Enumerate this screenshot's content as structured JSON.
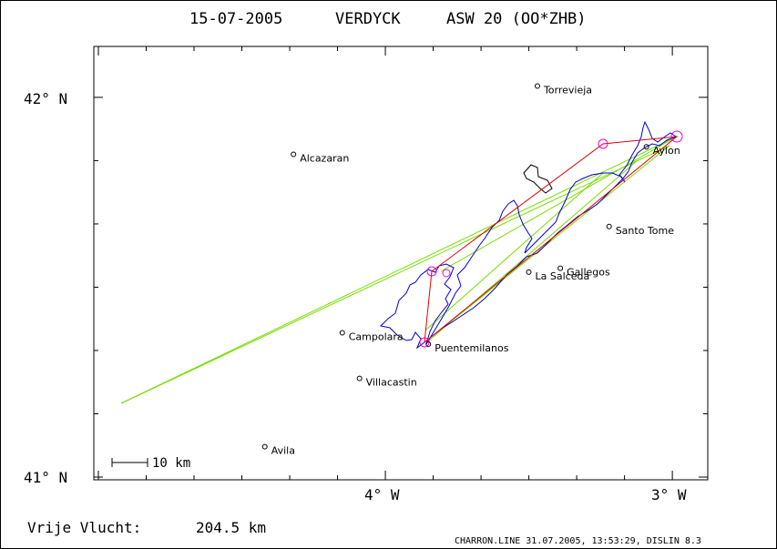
{
  "header": {
    "date": "15-07-2005",
    "pilot": "VERDYCK",
    "glider": "ASW 20 (OO*ZHB)"
  },
  "axes": {
    "y_labels": [
      {
        "text": "42° N",
        "lat": 42.0
      },
      {
        "text": "41° N",
        "lat": 41.0
      }
    ],
    "x_labels": [
      {
        "text": "4° W",
        "lon": -4.0
      },
      {
        "text": "3° W",
        "lon": -3.0
      }
    ]
  },
  "towns": [
    {
      "name": "Torrevieja",
      "lon": -3.47,
      "lat": 42.03
    },
    {
      "name": "Alcazaran",
      "lon": -4.32,
      "lat": 41.85
    },
    {
      "name": "Aylon",
      "lon": -3.09,
      "lat": 41.87
    },
    {
      "name": "Santo Tome",
      "lon": -3.22,
      "lat": 41.66
    },
    {
      "name": "Gallegos",
      "lon": -3.39,
      "lat": 41.55
    },
    {
      "name": "La Salceda",
      "lon": -3.5,
      "lat": 41.54
    },
    {
      "name": "Campolara",
      "lon": -4.15,
      "lat": 41.38
    },
    {
      "name": "Puentemilanos",
      "lon": -3.85,
      "lat": 41.35
    },
    {
      "name": "Villacastin",
      "lon": -4.09,
      "lat": 41.26
    },
    {
      "name": "Avila",
      "lon": -4.42,
      "lat": 41.08
    }
  ],
  "scale_bar": {
    "label": "10 km"
  },
  "footer": {
    "label": "Vrije Vlucht:",
    "distance": "204.5 km",
    "credit": "CHARRON.LINE 31.07.2005, 13:53:29, DISLIN 8.3"
  },
  "colors": {
    "track": "#0000cc",
    "task": "#dd0000",
    "turnpoint": "#ee00ee",
    "sector": "#77dd00",
    "terrain": "#000000"
  }
}
